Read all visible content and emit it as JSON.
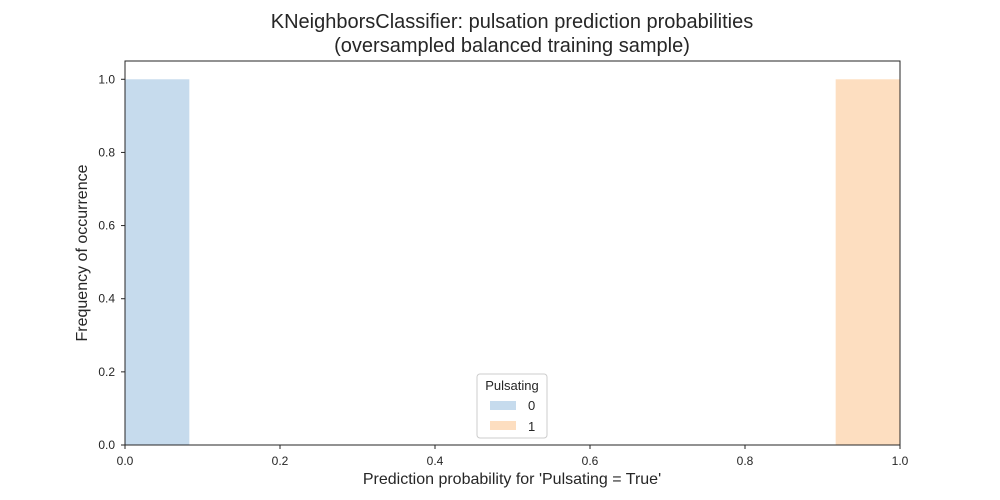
{
  "chart_data": {
    "type": "bar",
    "title_line1": "KNeighborsClassifier: pulsation prediction probabilities",
    "title_line2": "(oversampled balanced training sample)",
    "xlabel": "Prediction probability for 'Pulsating = True'",
    "ylabel": "Frequency of occurrence",
    "xlim": [
      0.0,
      1.0
    ],
    "ylim": [
      0.0,
      1.05
    ],
    "xticks": [
      0.0,
      0.2,
      0.4,
      0.6,
      0.8,
      1.0
    ],
    "xtick_labels": [
      "0.0",
      "0.2",
      "0.4",
      "0.6",
      "0.8",
      "1.0"
    ],
    "yticks": [
      0.0,
      0.2,
      0.4,
      0.6,
      0.8,
      1.0
    ],
    "ytick_labels": [
      "0.0",
      "0.2",
      "0.4",
      "0.6",
      "0.8",
      "1.0"
    ],
    "grid": false,
    "legend": {
      "title": "Pulsating",
      "placement": "bottom-center"
    },
    "series": [
      {
        "name": "0",
        "color": "#c6dbed",
        "bins": [
          {
            "x0": 0.0,
            "x1": 0.083,
            "value": 1.0
          }
        ]
      },
      {
        "name": "1",
        "color": "#fddec0",
        "bins": [
          {
            "x0": 0.917,
            "x1": 1.0,
            "value": 1.0
          }
        ]
      }
    ]
  }
}
